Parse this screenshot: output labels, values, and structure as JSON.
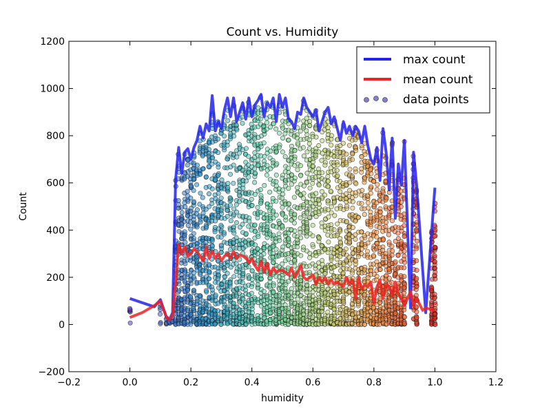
{
  "chart_data": {
    "type": "scatter",
    "title": "Count vs. Humidity",
    "xlabel": "humidity",
    "ylabel": "Count",
    "xlim": [
      -0.2,
      1.2
    ],
    "ylim": [
      -200,
      1200
    ],
    "xticks": [
      "−0.2",
      "0.0",
      "0.2",
      "0.4",
      "0.6",
      "0.8",
      "1.0",
      "1.2"
    ],
    "yticks": [
      "−200",
      "0",
      "200",
      "400",
      "600",
      "800",
      "1000",
      "1200"
    ],
    "grid": false,
    "legend_position": "top-right",
    "legend": [
      "max count",
      "mean count",
      "data points"
    ],
    "colormap": "rainbow-by-humidity (blue at low, green mid, red at high)",
    "series": [
      {
        "name": "max count",
        "kind": "line",
        "color": "#2222ee",
        "x": [
          0.0,
          0.08,
          0.1,
          0.12,
          0.13,
          0.14,
          0.15,
          0.16,
          0.17,
          0.18,
          0.19,
          0.2,
          0.21,
          0.22,
          0.23,
          0.24,
          0.25,
          0.26,
          0.27,
          0.28,
          0.29,
          0.3,
          0.31,
          0.32,
          0.33,
          0.34,
          0.35,
          0.36,
          0.37,
          0.38,
          0.39,
          0.4,
          0.41,
          0.42,
          0.43,
          0.44,
          0.45,
          0.46,
          0.47,
          0.48,
          0.49,
          0.5,
          0.51,
          0.52,
          0.53,
          0.54,
          0.55,
          0.56,
          0.57,
          0.58,
          0.59,
          0.6,
          0.61,
          0.62,
          0.63,
          0.64,
          0.65,
          0.66,
          0.67,
          0.68,
          0.69,
          0.7,
          0.71,
          0.72,
          0.73,
          0.74,
          0.75,
          0.76,
          0.77,
          0.78,
          0.79,
          0.8,
          0.81,
          0.82,
          0.83,
          0.84,
          0.85,
          0.86,
          0.87,
          0.88,
          0.89,
          0.9,
          0.92,
          0.93,
          0.94,
          0.97,
          1.0
        ],
        "y": [
          110,
          75,
          105,
          30,
          20,
          50,
          615,
          750,
          640,
          730,
          745,
          700,
          750,
          780,
          840,
          790,
          850,
          820,
          970,
          820,
          860,
          830,
          910,
          960,
          880,
          960,
          860,
          900,
          940,
          870,
          960,
          880,
          930,
          950,
          975,
          880,
          940,
          920,
          960,
          860,
          975,
          920,
          960,
          870,
          860,
          830,
          900,
          890,
          960,
          920,
          900,
          880,
          910,
          820,
          860,
          900,
          920,
          850,
          880,
          830,
          780,
          860,
          810,
          840,
          800,
          840,
          820,
          770,
          840,
          760,
          700,
          680,
          750,
          610,
          830,
          730,
          570,
          790,
          450,
          680,
          590,
          780,
          70,
          730,
          590,
          50,
          580
        ]
      },
      {
        "name": "mean count",
        "kind": "line",
        "color": "#ee2222",
        "x": [
          0.0,
          0.04,
          0.08,
          0.1,
          0.12,
          0.13,
          0.14,
          0.15,
          0.16,
          0.17,
          0.18,
          0.19,
          0.2,
          0.21,
          0.22,
          0.23,
          0.24,
          0.25,
          0.26,
          0.27,
          0.28,
          0.29,
          0.3,
          0.31,
          0.32,
          0.33,
          0.34,
          0.35,
          0.36,
          0.37,
          0.38,
          0.39,
          0.4,
          0.41,
          0.42,
          0.43,
          0.44,
          0.45,
          0.46,
          0.47,
          0.48,
          0.49,
          0.5,
          0.51,
          0.52,
          0.53,
          0.54,
          0.55,
          0.56,
          0.57,
          0.58,
          0.59,
          0.6,
          0.61,
          0.62,
          0.63,
          0.64,
          0.65,
          0.66,
          0.67,
          0.68,
          0.69,
          0.7,
          0.71,
          0.72,
          0.73,
          0.74,
          0.75,
          0.76,
          0.77,
          0.78,
          0.79,
          0.8,
          0.81,
          0.82,
          0.83,
          0.84,
          0.85,
          0.86,
          0.87,
          0.88,
          0.89,
          0.9,
          0.92,
          0.93,
          0.94,
          0.96,
          0.97,
          1.0
        ],
        "y": [
          30,
          50,
          80,
          100,
          30,
          20,
          40,
          180,
          340,
          300,
          330,
          290,
          300,
          320,
          310,
          290,
          270,
          330,
          280,
          310,
          280,
          300,
          270,
          290,
          300,
          280,
          310,
          280,
          295,
          290,
          285,
          260,
          280,
          250,
          230,
          270,
          220,
          260,
          210,
          240,
          220,
          230,
          230,
          220,
          210,
          240,
          200,
          220,
          250,
          200,
          190,
          200,
          210,
          170,
          200,
          180,
          200,
          170,
          190,
          170,
          180,
          170,
          160,
          200,
          170,
          190,
          110,
          200,
          150,
          170,
          160,
          180,
          90,
          160,
          190,
          110,
          170,
          160,
          120,
          180,
          130,
          110,
          80,
          140,
          80,
          110,
          60,
          70,
          60
        ]
      },
      {
        "name": "data points",
        "kind": "scatter",
        "note": "thousands of semi-transparent points, color varies with humidity"
      }
    ]
  }
}
